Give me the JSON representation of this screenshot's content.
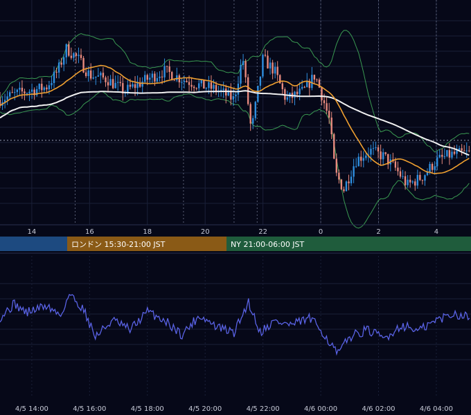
{
  "colors": {
    "background": "#060818",
    "grid": "#1a2038",
    "up_candle": "#2f8fe0",
    "down_candle": "#e88a7e",
    "ma_short": "#f0a030",
    "ma_long": "#f2f2f2",
    "bollinger": "#3a9a52",
    "oscillator": "#5a63e6",
    "session_tokyo": "#1d4a80",
    "session_london": "#8a5a16",
    "session_ny": "#1f5c3c"
  },
  "sessions": [
    {
      "label": "",
      "color": "#1d4a80"
    },
    {
      "label": "ロンドン 15:30-21:00 JST",
      "color": "#8a5a16"
    },
    {
      "label": "NY 21:00-06:00 JST",
      "color": "#1f5c3c"
    }
  ],
  "chart_data": [
    {
      "type": "candlestick",
      "title": "",
      "x_ticks": [
        "14",
        "16",
        "18",
        "20",
        "22",
        "0",
        "2",
        "4"
      ],
      "x_range_hours": [
        12.9,
        29.2
      ],
      "price_range": [
        0,
        100
      ],
      "reference_level": 38,
      "grid": true,
      "indicators": [
        "moving-average-short",
        "moving-average-long",
        "bollinger-bands"
      ],
      "price_keypoints": [
        {
          "t": 12.9,
          "p": 58
        },
        {
          "t": 13.5,
          "p": 61
        },
        {
          "t": 14.5,
          "p": 64
        },
        {
          "t": 14.9,
          "p": 72
        },
        {
          "t": 15.2,
          "p": 83
        },
        {
          "t": 15.6,
          "p": 78
        },
        {
          "t": 16.0,
          "p": 70
        },
        {
          "t": 16.6,
          "p": 68
        },
        {
          "t": 17.2,
          "p": 62
        },
        {
          "t": 18.0,
          "p": 68
        },
        {
          "t": 18.6,
          "p": 72
        },
        {
          "t": 19.2,
          "p": 68
        },
        {
          "t": 19.8,
          "p": 65
        },
        {
          "t": 20.4,
          "p": 63
        },
        {
          "t": 21.0,
          "p": 58
        },
        {
          "t": 21.3,
          "p": 79
        },
        {
          "t": 21.6,
          "p": 42
        },
        {
          "t": 22.0,
          "p": 78
        },
        {
          "t": 22.4,
          "p": 72
        },
        {
          "t": 22.8,
          "p": 58
        },
        {
          "t": 23.4,
          "p": 62
        },
        {
          "t": 23.8,
          "p": 70
        },
        {
          "t": 24.0,
          "p": 62
        },
        {
          "t": 24.3,
          "p": 48
        },
        {
          "t": 24.5,
          "p": 22
        },
        {
          "t": 24.8,
          "p": 14
        },
        {
          "t": 25.2,
          "p": 28
        },
        {
          "t": 25.7,
          "p": 33
        },
        {
          "t": 26.2,
          "p": 30
        },
        {
          "t": 26.6,
          "p": 24
        },
        {
          "t": 27.0,
          "p": 16
        },
        {
          "t": 27.5,
          "p": 20
        },
        {
          "t": 28.0,
          "p": 28
        },
        {
          "t": 28.5,
          "p": 31
        },
        {
          "t": 29.2,
          "p": 32
        }
      ]
    },
    {
      "type": "line",
      "title": "",
      "x_ticks": [
        "4/5 14:00",
        "4/5 16:00",
        "4/5 18:00",
        "4/5 20:00",
        "4/5 22:00",
        "4/6 00:00",
        "4/6 02:00",
        "4/6 04:00"
      ],
      "x_range_hours": [
        12.9,
        29.2
      ],
      "y_range": [
        0,
        100
      ],
      "grid": true,
      "keypoints": [
        {
          "t": 12.9,
          "v": 58
        },
        {
          "t": 13.4,
          "v": 72
        },
        {
          "t": 13.8,
          "v": 63
        },
        {
          "t": 14.5,
          "v": 70
        },
        {
          "t": 15.0,
          "v": 60
        },
        {
          "t": 15.3,
          "v": 82
        },
        {
          "t": 15.8,
          "v": 66
        },
        {
          "t": 16.2,
          "v": 38
        },
        {
          "t": 16.8,
          "v": 55
        },
        {
          "t": 17.4,
          "v": 45
        },
        {
          "t": 18.0,
          "v": 64
        },
        {
          "t": 18.6,
          "v": 55
        },
        {
          "t": 19.2,
          "v": 40
        },
        {
          "t": 19.8,
          "v": 60
        },
        {
          "t": 20.4,
          "v": 48
        },
        {
          "t": 21.0,
          "v": 42
        },
        {
          "t": 21.5,
          "v": 74
        },
        {
          "t": 21.9,
          "v": 43
        },
        {
          "t": 22.4,
          "v": 54
        },
        {
          "t": 23.0,
          "v": 50
        },
        {
          "t": 23.6,
          "v": 57
        },
        {
          "t": 24.0,
          "v": 46
        },
        {
          "t": 24.3,
          "v": 32
        },
        {
          "t": 24.6,
          "v": 20
        },
        {
          "t": 25.0,
          "v": 38
        },
        {
          "t": 25.6,
          "v": 45
        },
        {
          "t": 26.2,
          "v": 36
        },
        {
          "t": 26.8,
          "v": 50
        },
        {
          "t": 27.4,
          "v": 44
        },
        {
          "t": 28.0,
          "v": 55
        },
        {
          "t": 28.6,
          "v": 62
        },
        {
          "t": 29.2,
          "v": 58
        }
      ]
    }
  ]
}
